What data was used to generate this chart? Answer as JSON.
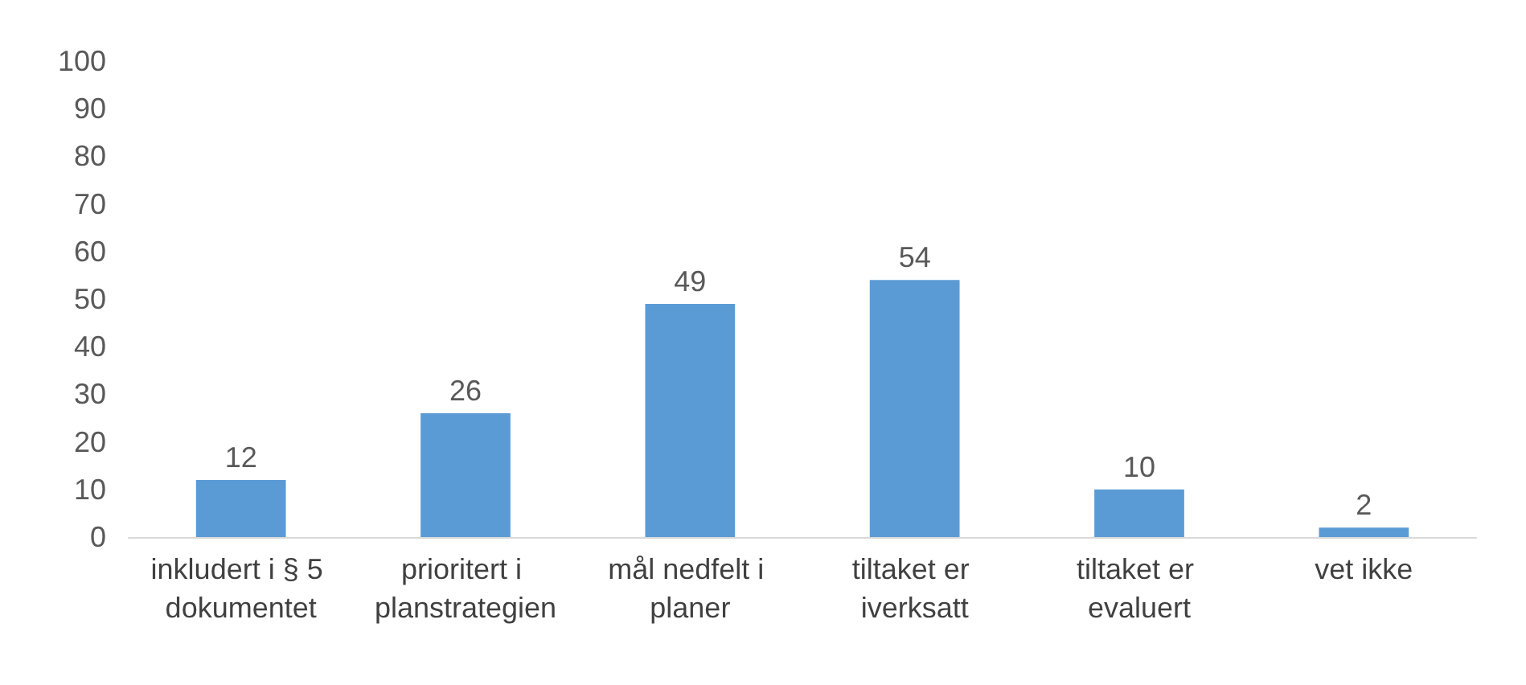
{
  "chart_data": {
    "type": "bar",
    "categories": [
      "inkludert i § 5 dokumentet",
      "prioritert i planstrategien",
      "mål nedfelt i planer",
      "tiltaket er iverksatt",
      "tiltaket er evaluert",
      "vet ikke"
    ],
    "values": [
      12,
      26,
      49,
      54,
      10,
      2
    ],
    "color": "#5b9bd5",
    "ylim": [
      0,
      100
    ],
    "yticks": [
      0,
      10,
      20,
      30,
      40,
      50,
      60,
      70,
      80,
      90,
      100
    ],
    "grid": false,
    "data_labels": true
  }
}
